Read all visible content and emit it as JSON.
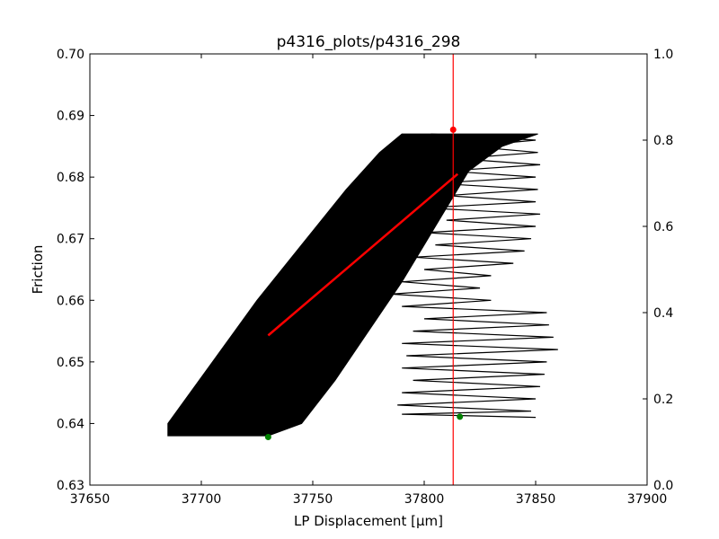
{
  "chart_data": {
    "type": "line",
    "title": "p4316_plots/p4316_298",
    "xlabel": "LP Displacement [μm]",
    "ylabel": "Friction",
    "xlim": [
      37650,
      37900
    ],
    "ylim": [
      0.63,
      0.7
    ],
    "y2lim": [
      0.0,
      1.0
    ],
    "x_ticks": [
      "37650",
      "37700",
      "37750",
      "37800",
      "37850",
      "37900"
    ],
    "y_ticks": [
      "0.63",
      "0.64",
      "0.65",
      "0.66",
      "0.67",
      "0.68",
      "0.69",
      "0.70"
    ],
    "y2_ticks": [
      "0.0",
      "0.2",
      "0.4",
      "0.6",
      "0.8",
      "1.0"
    ],
    "grid": false,
    "colors": {
      "data": "#000000",
      "fit": "#ff0000",
      "vline": "#ff0000",
      "marker_peak": "#ff0000",
      "marker_min": "#008000"
    },
    "series": [
      {
        "style": "band",
        "lower_edge": [
          [
            37685,
            0.638
          ],
          [
            37730,
            0.638
          ],
          [
            37745,
            0.64
          ],
          [
            37760,
            0.647
          ],
          [
            37775,
            0.655
          ],
          [
            37790,
            0.663
          ],
          [
            37800,
            0.669
          ],
          [
            37810,
            0.675
          ],
          [
            37820,
            0.681
          ],
          [
            37835,
            0.685
          ],
          [
            37851,
            0.687
          ]
        ],
        "upper_edge": [
          [
            37685,
            0.64
          ],
          [
            37705,
            0.65
          ],
          [
            37725,
            0.66
          ],
          [
            37745,
            0.669
          ],
          [
            37765,
            0.678
          ],
          [
            37780,
            0.684
          ],
          [
            37790,
            0.687
          ],
          [
            37851,
            0.687
          ]
        ]
      },
      {
        "style": "oscillation",
        "points": [
          [
            37803,
            0.687
          ],
          [
            37850,
            0.686
          ],
          [
            37820,
            0.685
          ],
          [
            37851,
            0.684
          ],
          [
            37815,
            0.683
          ],
          [
            37852,
            0.682
          ],
          [
            37810,
            0.681
          ],
          [
            37850,
            0.68
          ],
          [
            37805,
            0.679
          ],
          [
            37851,
            0.678
          ],
          [
            37810,
            0.677
          ],
          [
            37850,
            0.676
          ],
          [
            37800,
            0.675
          ],
          [
            37852,
            0.674
          ],
          [
            37810,
            0.673
          ],
          [
            37850,
            0.672
          ],
          [
            37800,
            0.671
          ],
          [
            37848,
            0.67
          ],
          [
            37805,
            0.669
          ],
          [
            37845,
            0.668
          ],
          [
            37795,
            0.667
          ],
          [
            37840,
            0.666
          ],
          [
            37800,
            0.665
          ],
          [
            37830,
            0.664
          ],
          [
            37790,
            0.663
          ],
          [
            37825,
            0.662
          ],
          [
            37785,
            0.661
          ],
          [
            37830,
            0.66
          ],
          [
            37790,
            0.659
          ],
          [
            37855,
            0.658
          ],
          [
            37800,
            0.657
          ],
          [
            37856,
            0.656
          ],
          [
            37795,
            0.655
          ],
          [
            37858,
            0.654
          ],
          [
            37790,
            0.653
          ],
          [
            37860,
            0.652
          ],
          [
            37792,
            0.651
          ],
          [
            37855,
            0.65
          ],
          [
            37790,
            0.649
          ],
          [
            37854,
            0.648
          ],
          [
            37795,
            0.647
          ],
          [
            37852,
            0.646
          ],
          [
            37790,
            0.645
          ],
          [
            37850,
            0.644
          ],
          [
            37788,
            0.643
          ],
          [
            37848,
            0.642
          ],
          [
            37790,
            0.6415
          ],
          [
            37850,
            0.641
          ]
        ]
      }
    ],
    "fit_line": {
      "x": [
        37730,
        37815
      ],
      "y": [
        0.6543,
        0.6805
      ]
    },
    "vline_x": 37813,
    "markers": [
      {
        "label": "peak",
        "x": 37813,
        "y": 0.6877,
        "color": "#ff0000"
      },
      {
        "label": "min",
        "x": 37730,
        "y": 0.6378,
        "color": "#008000"
      },
      {
        "label": "min2",
        "x": 37816,
        "y": 0.6411,
        "color": "#008000"
      }
    ]
  }
}
